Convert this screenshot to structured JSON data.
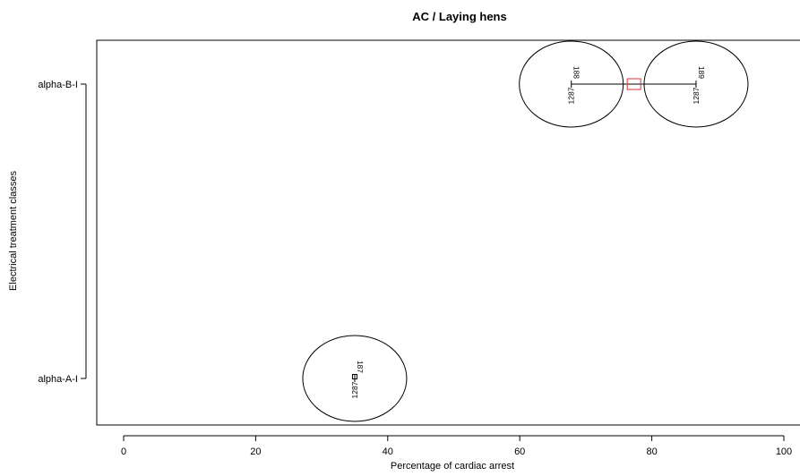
{
  "chart_data": {
    "type": "scatter",
    "title": "AC / Laying hens",
    "xlabel": "Percentage of cardiac arrest",
    "ylabel": "Electrical treatment classes",
    "xlim": [
      -4,
      102
    ],
    "x_ticks": [
      0,
      20,
      40,
      60,
      80,
      100
    ],
    "categories": [
      "alpha-A-I",
      "alpha-B-I"
    ],
    "studies": [
      {
        "category": "alpha-B-I",
        "x": 67.8,
        "labels": [
          "188",
          "1287"
        ]
      },
      {
        "category": "alpha-B-I",
        "x": 86.7,
        "labels": [
          "189",
          "1287"
        ]
      },
      {
        "category": "alpha-A-I",
        "x": 35.0,
        "labels": [
          "187",
          "1287"
        ]
      }
    ],
    "means": [
      {
        "category": "alpha-B-I",
        "x": 77.3,
        "color": "#e03030"
      },
      {
        "category": "alpha-A-I",
        "x": 35.0,
        "color": "#000000"
      }
    ],
    "ranges": [
      {
        "category": "alpha-B-I",
        "from": 67.8,
        "to": 86.7
      }
    ],
    "grid": false,
    "legend": "none"
  }
}
